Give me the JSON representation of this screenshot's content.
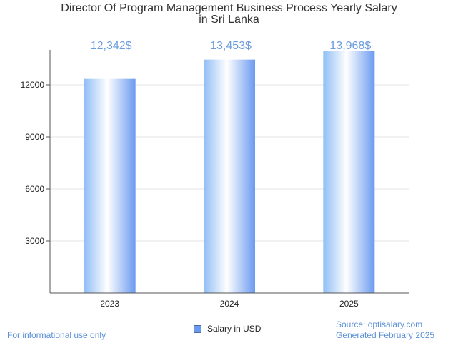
{
  "chart_data": {
    "type": "bar",
    "title_line1": "Director Of Program Management Business Process Yearly Salary",
    "title_line2": "in Sri Lanka",
    "categories": [
      "2023",
      "2024",
      "2025"
    ],
    "series": [
      {
        "name": "Salary in USD",
        "values": [
          12342,
          13453,
          13968
        ]
      }
    ],
    "value_labels": [
      "12,342$",
      "13,453$",
      "13,968$"
    ],
    "yticks": [
      3000,
      6000,
      9000,
      12000
    ],
    "ylim": [
      0,
      14500
    ],
    "grid": true,
    "legend_position": "bottom",
    "bar_color": "#6a9af0",
    "label_color": "#6a9ce0"
  },
  "footer": {
    "disclaimer": "For informational use only",
    "source": "Source: optisalary.com",
    "generated": "Generated February 2025"
  }
}
